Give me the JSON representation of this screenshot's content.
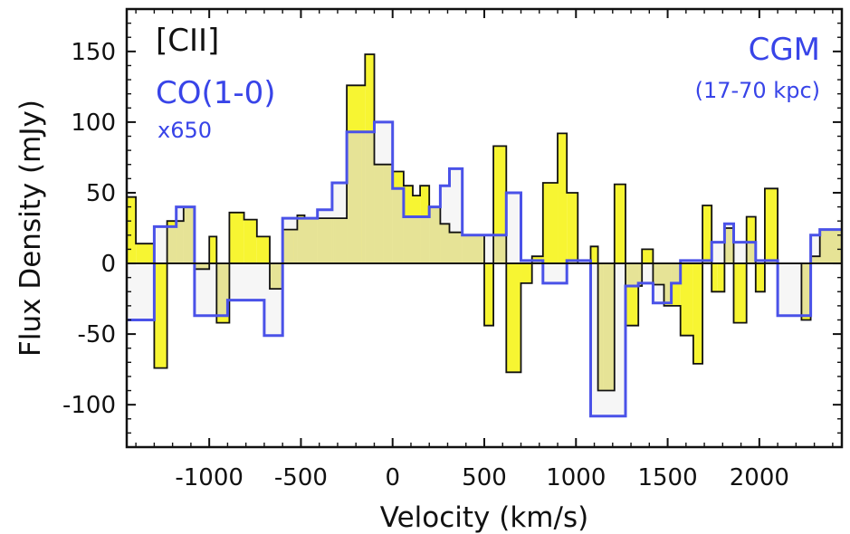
{
  "chart_data": {
    "type": "line",
    "subtype": "step",
    "xlabel": "Velocity (km/s)",
    "ylabel": "Flux Density (mJy)",
    "xlim": [
      -1450,
      2450
    ],
    "ylim": [
      -130,
      180
    ],
    "x_ticks": [
      -1000,
      -500,
      0,
      500,
      1000,
      1500,
      2000
    ],
    "x_tick_labels": [
      "-1000",
      "-500",
      "0",
      "500",
      "1000",
      "1500",
      "2000"
    ],
    "y_ticks": [
      -100,
      -50,
      0,
      50,
      100,
      150
    ],
    "y_tick_labels": [
      "-100",
      "-50",
      "0",
      "50",
      "100",
      "150"
    ],
    "zero_line": true,
    "grid": false,
    "legend_left": {
      "line1": "[CII]",
      "line2": "CO(1-0)",
      "line3": "x650"
    },
    "legend_right": {
      "line1": "CGM",
      "line2": "(17-70 kpc)"
    },
    "colors": {
      "cii_fill": "#f7f532",
      "cii_line": "#111111",
      "co_fill": "#eeeeee",
      "co_line": "#4a52e8",
      "overlap_fill": "#e6e396",
      "blue_text": "#3844e8",
      "black_text": "#111111"
    },
    "series": [
      {
        "name": "[CII]",
        "step_edges": [
          -1450,
          -1400,
          -1300,
          -1230,
          -1140,
          -1080,
          -1000,
          -960,
          -890,
          -810,
          -740,
          -670,
          -600,
          -520,
          -480,
          -410,
          -330,
          -320,
          -310,
          -300,
          -250,
          -150,
          -100,
          -50,
          0,
          60,
          110,
          150,
          200,
          260,
          310,
          380,
          500,
          550,
          620,
          700,
          760,
          820,
          900,
          950,
          1010,
          1080,
          1120,
          1150,
          1210,
          1270,
          1340,
          1360,
          1420,
          1480,
          1520,
          1570,
          1640,
          1690,
          1740,
          1770,
          1810,
          1860,
          1930,
          1980,
          2030,
          2100,
          2230,
          2280,
          2330,
          2450
        ],
        "values": [
          47,
          14,
          -74,
          30,
          40,
          -4,
          19,
          -42,
          36,
          31,
          19,
          -18,
          24,
          34,
          32,
          32,
          32,
          32,
          32,
          32,
          126,
          148,
          70,
          70,
          65,
          55,
          48,
          55,
          40,
          28,
          22,
          20,
          -44,
          83,
          -77,
          -14,
          5,
          57,
          92,
          50,
          0,
          12,
          -90,
          -90,
          56,
          -44,
          -16,
          10,
          -15,
          -30,
          -30,
          -51,
          -71,
          41,
          -20,
          -20,
          25,
          -42,
          33,
          -20,
          53,
          0,
          -40,
          5,
          24
        ],
        "fill": "#f7f532",
        "line_color": "#111111"
      },
      {
        "name": "CO(1-0)",
        "step_edges": [
          -1450,
          -1400,
          -1300,
          -1180,
          -1080,
          -1000,
          -900,
          -790,
          -700,
          -640,
          -600,
          -540,
          -480,
          -410,
          -330,
          -250,
          -170,
          -100,
          -50,
          0,
          60,
          110,
          150,
          200,
          260,
          310,
          380,
          500,
          550,
          620,
          700,
          760,
          820,
          900,
          950,
          1010,
          1080,
          1120,
          1150,
          1210,
          1270,
          1340,
          1360,
          1420,
          1480,
          1520,
          1570,
          1640,
          1690,
          1740,
          1770,
          1810,
          1860,
          1930,
          1980,
          2030,
          2100,
          2230,
          2280,
          2330,
          2450
        ],
        "values": [
          -40,
          -40,
          26,
          40,
          -37,
          -37,
          -26,
          -26,
          -51,
          -51,
          32,
          32,
          32,
          38,
          57,
          93,
          93,
          100,
          100,
          53,
          33,
          33,
          33,
          40,
          55,
          67,
          20,
          20,
          20,
          50,
          2,
          2,
          -14,
          -14,
          2,
          2,
          -108,
          -108,
          -108,
          -108,
          -16,
          -14,
          -14,
          -28,
          -28,
          -14,
          2,
          2,
          2,
          15,
          15,
          28,
          15,
          15,
          2,
          2,
          -37,
          -37,
          20,
          24
        ],
        "fill": "#eeeeee",
        "line_color": "#4a52e8"
      }
    ]
  }
}
